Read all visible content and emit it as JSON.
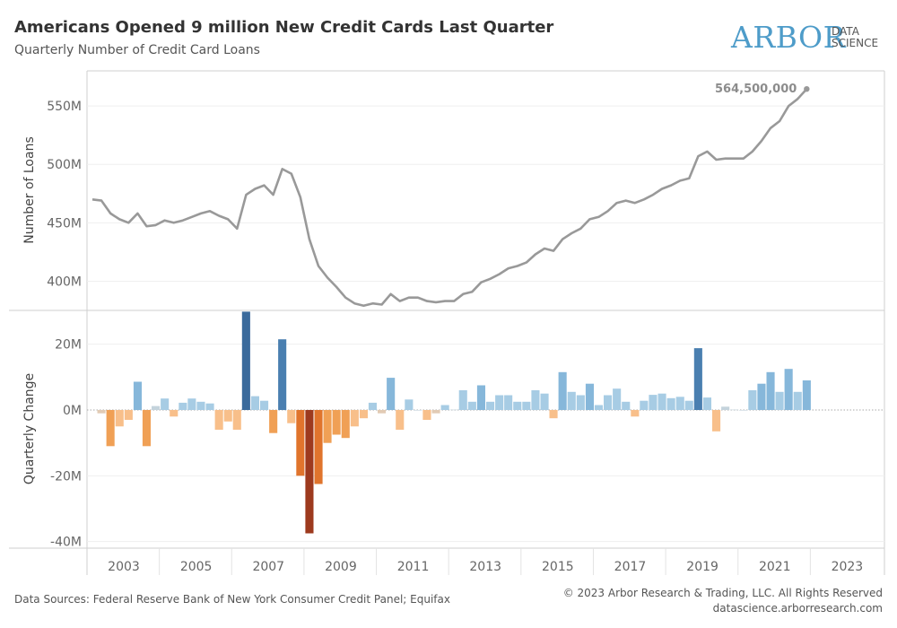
{
  "header": {
    "title": "Americans Opened 9 million New Credit Cards Last Quarter",
    "subtitle": "Quarterly Number of Credit Card Loans"
  },
  "logo": {
    "word": "ARBOR",
    "line1": "DATA",
    "line2": "SCIENCE"
  },
  "footer": {
    "sources": "Data Sources: Federal Reserve Bank of New York Consumer Credit Panel; Equifax",
    "copyright": "© 2023 Arbor Research & Trading, LLC. All Rights Reserved",
    "website": "datascience.arborresearch.com"
  },
  "colors": {
    "line": "#999999",
    "pos_light": "#a7cce4",
    "pos_mid": "#86b7da",
    "pos_dark": "#4a7fb0",
    "pos_darkest": "#3a6a9c",
    "neg_light": "#f8bf8a",
    "neg_mid": "#f0a055",
    "neg_dark": "#e0742c",
    "neg_darkest": "#9d3a1e",
    "neutral_light": "#c4d3dc",
    "neutral_warm": "#e2cbb4"
  },
  "chart_data": [
    {
      "type": "line",
      "title": "Quarterly Number of Credit Card Loans",
      "xlabel": "",
      "ylabel": "Number of Loans",
      "ylim": [
        375,
        580
      ],
      "y_ticks": [
        400,
        450,
        500,
        550
      ],
      "y_tick_labels": [
        "400M",
        "450M",
        "500M",
        "550M"
      ],
      "x_ticks": [
        2003,
        2005,
        2007,
        2009,
        2011,
        2013,
        2015,
        2017,
        2019,
        2021,
        2023
      ],
      "x_tick_labels": [
        "2003",
        "2005",
        "2007",
        "2009",
        "2011",
        "2013",
        "2015",
        "2017",
        "2019",
        "2021",
        "2023"
      ],
      "start_year": 2003,
      "start_quarter": 1,
      "values": [
        470,
        469,
        458,
        453,
        450,
        458,
        447,
        448,
        452,
        450,
        452,
        455,
        458,
        460,
        456,
        453,
        445,
        474,
        479,
        482,
        474,
        496,
        492,
        472,
        436,
        413,
        403,
        395,
        386,
        381,
        379,
        381,
        380,
        389,
        383,
        386,
        386,
        383,
        382,
        383,
        383,
        389,
        391,
        399,
        402,
        406,
        411,
        413,
        416,
        423,
        428,
        426,
        436,
        441,
        445,
        453,
        455,
        460,
        467,
        469,
        467,
        470,
        474,
        479,
        482,
        486,
        488,
        507,
        511,
        504,
        505,
        505,
        505,
        511,
        520,
        531,
        537,
        550,
        556,
        564.5
      ],
      "annotation": "564,500,000"
    },
    {
      "type": "bar",
      "title": "Quarterly Change",
      "xlabel": "",
      "ylabel": "Quarterly Change",
      "ylim": [
        -42,
        30
      ],
      "y_ticks": [
        20,
        0,
        -20,
        -40
      ],
      "y_tick_labels": [
        "20M",
        "0M",
        "-20M",
        "-40M"
      ],
      "start_year": 2003,
      "start_quarter": 2,
      "values": [
        -1,
        -11,
        -5,
        -3,
        8.6,
        -11,
        1.2,
        3.5,
        -2,
        2.2,
        3.5,
        2.5,
        2,
        -6,
        -3.5,
        -6,
        29.9,
        4.2,
        2.8,
        -7,
        21.5,
        -4,
        -20,
        -37.5,
        -22.5,
        -10,
        -7.5,
        -8.5,
        -5,
        -2.5,
        2.2,
        -1,
        9.8,
        -6,
        3.2,
        0,
        -3,
        -1,
        1.5,
        0.1,
        6,
        2.5,
        7.5,
        2.5,
        4.5,
        4.5,
        2.5,
        2.5,
        6,
        5,
        -2.5,
        11.5,
        5.5,
        4.5,
        8,
        1.5,
        4.5,
        6.5,
        2.5,
        -2,
        2.8,
        4.6,
        5,
        3.6,
        4,
        2.8,
        18.8,
        3.8,
        -6.5,
        1,
        0.1,
        0,
        6,
        8,
        11.5,
        5.5,
        12.5,
        5.5,
        9
      ]
    }
  ]
}
